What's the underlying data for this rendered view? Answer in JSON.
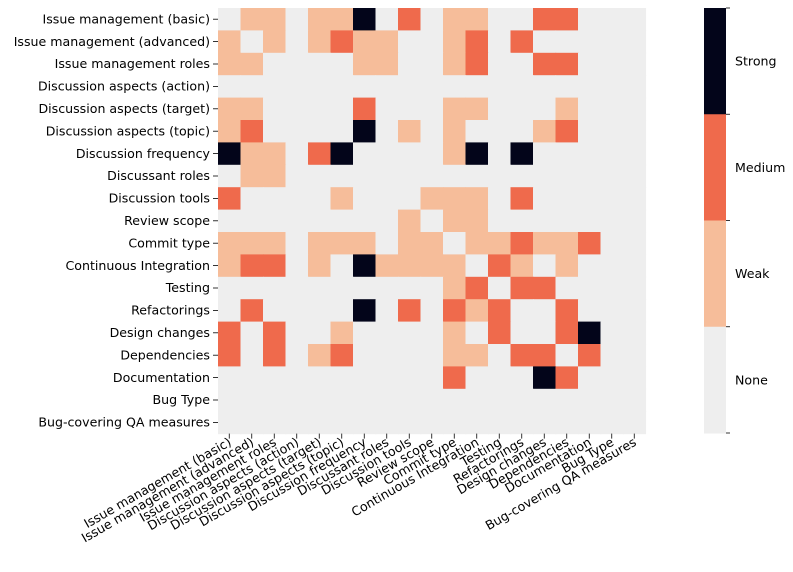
{
  "chart_data": {
    "type": "heatmap",
    "title": "",
    "xlabel": "",
    "ylabel": "",
    "rows": [
      "Issue management (basic)",
      "Issue management (advanced)",
      "Issue management roles",
      "Discussion aspects (action)",
      "Discussion aspects (target)",
      "Discussion aspects (topic)",
      "Discussion frequency",
      "Discussant roles",
      "Discussion tools",
      "Review scope",
      "Commit type",
      "Continuous Integration",
      "Testing",
      "Refactorings",
      "Design changes",
      "Dependencies",
      "Documentation",
      "Bug Type",
      "Bug-covering QA measures"
    ],
    "columns": [
      "Issue management (basic)",
      "Issue management (advanced)",
      "Issue management roles",
      "Discussion aspects (action)",
      "Discussion aspects (target)",
      "Discussion aspects (topic)",
      "Discussion frequency",
      "Discussant roles",
      "Discussion tools",
      "Review scope",
      "Commit type",
      "Continuous Integration",
      "Testing",
      "Refactorings",
      "Design changes",
      "Dependencies",
      "Documentation",
      "Bug Type",
      "Bug-covering QA measures"
    ],
    "levels": [
      "None",
      "Weak",
      "Medium",
      "Strong"
    ],
    "colors": {
      "None": "#eeeeee",
      "Weak": "#f6bd9a",
      "Medium": "#ef6a4c",
      "Strong": "#03051a"
    },
    "values": [
      [
        0,
        1,
        1,
        0,
        1,
        1,
        3,
        0,
        2,
        0,
        1,
        1,
        0,
        0,
        2,
        2,
        0,
        0,
        0
      ],
      [
        1,
        0,
        1,
        0,
        1,
        2,
        1,
        1,
        0,
        0,
        1,
        2,
        0,
        2,
        0,
        0,
        0,
        0,
        0
      ],
      [
        1,
        1,
        0,
        0,
        0,
        0,
        1,
        1,
        0,
        0,
        1,
        2,
        0,
        0,
        2,
        2,
        0,
        0,
        0
      ],
      [
        0,
        0,
        0,
        0,
        0,
        0,
        0,
        0,
        0,
        0,
        0,
        0,
        0,
        0,
        0,
        0,
        0,
        0,
        0
      ],
      [
        1,
        1,
        0,
        0,
        0,
        0,
        2,
        0,
        0,
        0,
        1,
        1,
        0,
        0,
        0,
        1,
        0,
        0,
        0
      ],
      [
        1,
        2,
        0,
        0,
        0,
        0,
        3,
        0,
        1,
        0,
        1,
        0,
        0,
        0,
        1,
        2,
        0,
        0,
        0
      ],
      [
        3,
        1,
        1,
        0,
        2,
        3,
        0,
        0,
        0,
        0,
        1,
        3,
        0,
        3,
        0,
        0,
        0,
        0,
        0
      ],
      [
        0,
        1,
        1,
        0,
        0,
        0,
        0,
        0,
        0,
        0,
        0,
        0,
        0,
        0,
        0,
        0,
        0,
        0,
        0
      ],
      [
        2,
        0,
        0,
        0,
        0,
        1,
        0,
        0,
        0,
        1,
        1,
        1,
        0,
        2,
        0,
        0,
        0,
        0,
        0
      ],
      [
        0,
        0,
        0,
        0,
        0,
        0,
        0,
        0,
        1,
        0,
        1,
        1,
        0,
        0,
        0,
        0,
        0,
        0,
        0
      ],
      [
        1,
        1,
        1,
        0,
        1,
        1,
        1,
        0,
        1,
        1,
        0,
        1,
        1,
        2,
        1,
        1,
        2,
        0,
        0
      ],
      [
        1,
        2,
        2,
        0,
        1,
        0,
        3,
        1,
        1,
        1,
        1,
        0,
        2,
        1,
        0,
        1,
        0,
        0,
        0
      ],
      [
        0,
        0,
        0,
        0,
        0,
        0,
        0,
        0,
        0,
        0,
        1,
        2,
        0,
        2,
        2,
        0,
        0,
        0,
        0
      ],
      [
        0,
        2,
        0,
        0,
        0,
        0,
        3,
        0,
        2,
        0,
        2,
        1,
        2,
        0,
        0,
        2,
        0,
        0,
        0
      ],
      [
        2,
        0,
        2,
        0,
        0,
        1,
        0,
        0,
        0,
        0,
        1,
        0,
        2,
        0,
        0,
        2,
        3,
        0,
        0
      ],
      [
        2,
        0,
        2,
        0,
        1,
        2,
        0,
        0,
        0,
        0,
        1,
        1,
        0,
        2,
        2,
        0,
        2,
        0,
        0
      ],
      [
        0,
        0,
        0,
        0,
        0,
        0,
        0,
        0,
        0,
        0,
        2,
        0,
        0,
        0,
        3,
        2,
        0,
        0,
        0
      ],
      [
        0,
        0,
        0,
        0,
        0,
        0,
        0,
        0,
        0,
        0,
        0,
        0,
        0,
        0,
        0,
        0,
        0,
        0,
        0
      ],
      [
        0,
        0,
        0,
        0,
        0,
        0,
        0,
        0,
        0,
        0,
        0,
        0,
        0,
        0,
        0,
        0,
        0,
        0,
        0
      ]
    ],
    "colorbar": {
      "ticks": [
        "None",
        "Weak",
        "Medium",
        "Strong"
      ]
    }
  }
}
